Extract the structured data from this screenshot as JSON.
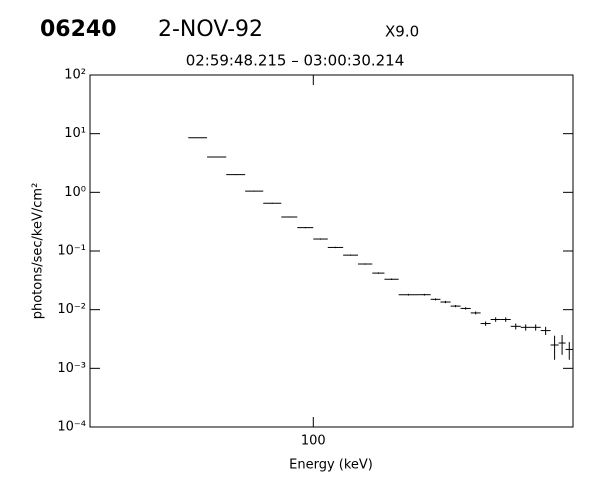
{
  "chart_data": {
    "type": "histogram",
    "title": "2-NOV-92",
    "annotations": [
      "06240",
      "X9.0"
    ],
    "subtitle": "02:59:48.215 – 03:00:30.214",
    "xlabel": "Energy (keV)",
    "ylabel": "photons/sec/keV/cm²",
    "xscale": "log",
    "yscale": "log",
    "color": "#000000",
    "xlim": [
      20,
      650
    ],
    "xticks": [
      100
    ],
    "ylim": [
      0.0001,
      100
    ],
    "yticks": [
      {
        "value": 0.0001,
        "label": "10⁻⁴"
      },
      {
        "value": 0.001,
        "label": "10⁻³"
      },
      {
        "value": 0.01,
        "label": "10⁻²"
      },
      {
        "value": 0.1,
        "label": "10⁻¹"
      },
      {
        "value": 1,
        "label": "10⁰"
      },
      {
        "value": 10,
        "label": "10¹"
      },
      {
        "value": 100,
        "label": "10²"
      }
    ],
    "bins": [
      40.6,
      46.5,
      53.4,
      61.2,
      69.7,
      79.4,
      89.1,
      100,
      111,
      124,
      138,
      153,
      167,
      185,
      213,
      233,
      250,
      269,
      289,
      311,
      334,
      359,
      386,
      415,
      446,
      479,
      515,
      553,
      586,
      616,
      650
    ],
    "values": [
      8.5,
      4.0,
      2.0,
      1.05,
      0.65,
      0.38,
      0.25,
      0.16,
      0.115,
      0.085,
      0.06,
      0.042,
      0.033,
      0.018,
      0.018,
      0.015,
      0.0135,
      0.0115,
      0.0105,
      0.0088,
      0.0058,
      0.0068,
      0.0068,
      0.0052,
      0.005,
      0.005,
      0.0044,
      0.0025,
      0.0027,
      0.0021
    ],
    "errors": [
      0.1,
      0.05,
      0.03,
      0.02,
      0.012,
      0.008,
      0.006,
      0.004,
      0.003,
      0.002,
      0.0015,
      0.0012,
      0.001,
      0.0006,
      0.0006,
      0.0006,
      0.0006,
      0.0005,
      0.0005,
      0.0005,
      0.0005,
      0.0006,
      0.0006,
      0.0006,
      0.0006,
      0.0006,
      0.0007,
      0.0011,
      0.001,
      0.0007
    ]
  }
}
